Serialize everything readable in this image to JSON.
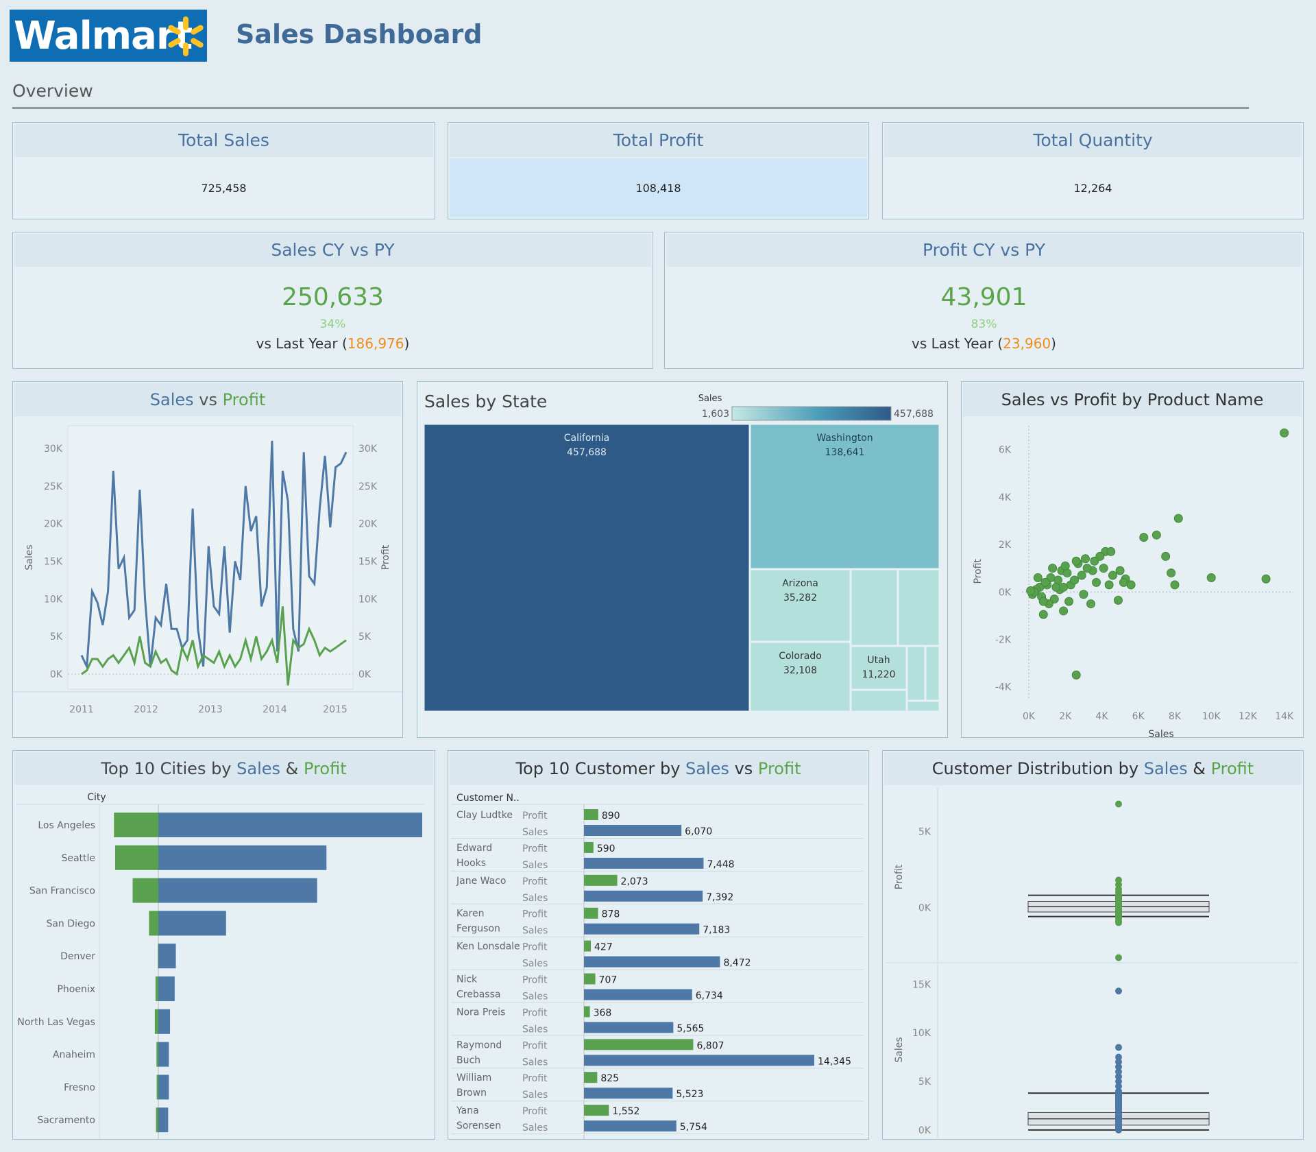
{
  "header": {
    "logo_text": "Walmart",
    "title": "Sales Dashboard",
    "section": "Overview"
  },
  "kpis": [
    {
      "title": "Total Sales",
      "value": "725,458"
    },
    {
      "title": "Total Profit",
      "value": "108,418"
    },
    {
      "title": "Total Quantity",
      "value": "12,264"
    }
  ],
  "cy_vs_py": [
    {
      "title": "Sales CY vs PY",
      "value": "250,633",
      "pct": "34%",
      "vs_prefix": "vs Last Year (",
      "last_year": "186,976",
      "vs_suffix": ")"
    },
    {
      "title": "Profit CY vs PY",
      "value": "43,901",
      "pct": "83%",
      "vs_prefix": "vs Last Year (",
      "last_year": "23,960",
      "vs_suffix": ")"
    }
  ],
  "titles": {
    "line_a": "Sales",
    "line_mid": " vs ",
    "line_b": "Profit",
    "treemap": "Sales by State",
    "scatter": "Sales vs Profit by Product Name",
    "cities_pre": "Top 10 Cities by ",
    "cities_a": "Sales",
    "cities_amp": " & ",
    "cities_b": "Profit",
    "cust_pre": "Top 10 Customer by ",
    "cust_a": "Sales",
    "cust_vs": " vs ",
    "cust_b": "Profit",
    "dist_pre": "Customer Distribution by ",
    "dist_a": "Sales",
    "dist_amp": " & ",
    "dist_b": "Profit"
  },
  "colors": {
    "sales": "#4e79a7",
    "profit": "#59a14f",
    "accent_orange": "#f28e2b",
    "treemap_dark": "#2e5a87",
    "treemap_mid": "#7bbfcb",
    "treemap_light": "#b4e0dc"
  },
  "chart_data": [
    {
      "type": "line",
      "id": "sales_vs_profit",
      "title": "Sales vs Profit",
      "ylabel": "Sales",
      "y2label": "Profit",
      "ylim": [
        -2000,
        33000
      ],
      "y_ticks": [
        "0K",
        "5K",
        "10K",
        "15K",
        "20K",
        "25K",
        "30K"
      ],
      "y_tick_values": [
        0,
        5000,
        10000,
        15000,
        20000,
        25000,
        30000
      ],
      "x_ticks": [
        "2011",
        "2012",
        "2013",
        "2014",
        "2015"
      ],
      "series": [
        {
          "name": "Sales",
          "values": [
            2500,
            1000,
            11000,
            9500,
            6500,
            11000,
            27000,
            14000,
            15500,
            7500,
            8500,
            24500,
            10000,
            1000,
            7500,
            6500,
            12000,
            6000,
            6000,
            3500,
            4500,
            22000,
            6000,
            1000,
            17000,
            9000,
            8000,
            17000,
            5500,
            15000,
            12500,
            25000,
            19000,
            21000,
            9000,
            11500,
            31000,
            3000,
            27000,
            23000,
            6000,
            3000,
            29500,
            13000,
            12000,
            22000,
            29000,
            19500,
            27500,
            28000,
            29500
          ]
        },
        {
          "name": "Profit",
          "values": [
            0,
            500,
            2000,
            2000,
            1000,
            2000,
            2500,
            1500,
            2500,
            3500,
            1500,
            5000,
            1500,
            1000,
            3000,
            1500,
            2000,
            500,
            0,
            3500,
            2000,
            4500,
            1000,
            2500,
            2000,
            1500,
            3000,
            1000,
            2500,
            1000,
            2000,
            4500,
            2000,
            5000,
            2000,
            3000,
            4500,
            1500,
            9000,
            -1500,
            4500,
            3500,
            4000,
            6000,
            4500,
            2500,
            3500,
            3000,
            3500,
            4000,
            4500
          ]
        }
      ]
    },
    {
      "type": "heatmap",
      "id": "sales_by_state",
      "subtype": "treemap",
      "title": "Sales by State",
      "legend_title": "Sales",
      "legend_min": "1,603",
      "legend_max": "457,688",
      "states": [
        {
          "name": "California",
          "value": 457688,
          "label": "457,688"
        },
        {
          "name": "Washington",
          "value": 138641,
          "label": "138,641"
        },
        {
          "name": "Arizona",
          "value": 35282,
          "label": "35,282"
        },
        {
          "name": "Colorado",
          "value": 32108,
          "label": "32,108"
        },
        {
          "name": "Utah",
          "value": 11220,
          "label": "11,220"
        }
      ]
    },
    {
      "type": "scatter",
      "id": "sales_vs_profit_product",
      "title": "Sales vs Profit by Product Name",
      "xlabel": "Sales",
      "ylabel": "Profit",
      "xlim": [
        0,
        14500
      ],
      "ylim": [
        -4500,
        7000
      ],
      "x_ticks": [
        "0K",
        "2K",
        "4K",
        "6K",
        "8K",
        "10K",
        "12K",
        "14K"
      ],
      "x_tick_values": [
        0,
        2000,
        4000,
        6000,
        8000,
        10000,
        12000,
        14000
      ],
      "y_ticks": [
        "-4K",
        "-2K",
        "0K",
        "2K",
        "4K",
        "6K"
      ],
      "y_tick_values": [
        -4000,
        -2000,
        0,
        2000,
        4000,
        6000
      ],
      "points": [
        [
          14000,
          6700
        ],
        [
          8200,
          3100
        ],
        [
          7000,
          2400
        ],
        [
          6300,
          2300
        ],
        [
          7500,
          1500
        ],
        [
          7800,
          800
        ],
        [
          8000,
          300
        ],
        [
          10000,
          600
        ],
        [
          13000,
          550
        ],
        [
          2600,
          -3500
        ],
        [
          800,
          -950
        ],
        [
          1900,
          -800
        ],
        [
          3400,
          -500
        ],
        [
          4900,
          -350
        ],
        [
          5600,
          300
        ],
        [
          5300,
          550
        ],
        [
          5200,
          400
        ],
        [
          4200,
          1700
        ],
        [
          4500,
          1700
        ],
        [
          3900,
          1500
        ],
        [
          3100,
          1400
        ],
        [
          2700,
          1200
        ],
        [
          1600,
          500
        ],
        [
          3500,
          900
        ],
        [
          4100,
          1000
        ],
        [
          2900,
          700
        ],
        [
          2300,
          300
        ],
        [
          1800,
          900
        ],
        [
          1200,
          600
        ],
        [
          1000,
          300
        ],
        [
          600,
          200
        ],
        [
          400,
          100
        ],
        [
          200,
          -100
        ],
        [
          700,
          -200
        ],
        [
          1400,
          -300
        ],
        [
          1700,
          100
        ],
        [
          2500,
          500
        ],
        [
          2100,
          800
        ],
        [
          3700,
          400
        ],
        [
          4600,
          700
        ],
        [
          5000,
          900
        ],
        [
          3000,
          -100
        ],
        [
          2200,
          -400
        ],
        [
          1100,
          -500
        ],
        [
          1500,
          200
        ],
        [
          900,
          400
        ],
        [
          500,
          600
        ],
        [
          300,
          0
        ],
        [
          1300,
          1000
        ],
        [
          2000,
          1100
        ],
        [
          2600,
          1300
        ],
        [
          3200,
          1000
        ],
        [
          4400,
          300
        ],
        [
          3600,
          1300
        ],
        [
          1900,
          200
        ],
        [
          800,
          -400
        ],
        [
          100,
          50
        ]
      ]
    },
    {
      "type": "bar",
      "id": "top10_cities",
      "title": "Top 10 Cities by Sales & Profit",
      "axis_header": "City",
      "categories": [
        "Los Angeles",
        "Seattle",
        "San Francisco",
        "San Diego",
        "Denver",
        "Phoenix",
        "North Las Vegas",
        "Anaheim",
        "Fresno",
        "Sacramento"
      ],
      "series": [
        {
          "name": "Sales",
          "values": [
            113000,
            72000,
            68000,
            29000,
            7500,
            7000,
            5000,
            4500,
            4500,
            4200
          ]
        },
        {
          "name": "Profit",
          "values": [
            19000,
            18500,
            11000,
            4000,
            200,
            1200,
            1500,
            800,
            700,
            1000
          ]
        }
      ]
    },
    {
      "type": "bar",
      "id": "top10_customers",
      "title": "Top 10 Customer by Sales vs Profit",
      "axis_header": "Customer N..",
      "row_labels": [
        "Profit",
        "Sales"
      ],
      "customers": [
        {
          "name": "Clay Ludtke",
          "profit": 890,
          "profit_label": "890",
          "sales": 6070,
          "sales_label": "6,070"
        },
        {
          "name": "Edward Hooks",
          "profit": 590,
          "profit_label": "590",
          "sales": 7448,
          "sales_label": "7,448"
        },
        {
          "name": "Jane Waco",
          "profit": 2073,
          "profit_label": "2,073",
          "sales": 7392,
          "sales_label": "7,392"
        },
        {
          "name": "Karen Ferguson",
          "profit": 878,
          "profit_label": "878",
          "sales": 7183,
          "sales_label": "7,183"
        },
        {
          "name": "Ken Lonsdale",
          "profit": 427,
          "profit_label": "427",
          "sales": 8472,
          "sales_label": "8,472"
        },
        {
          "name": "Nick Crebassa",
          "profit": 707,
          "profit_label": "707",
          "sales": 6734,
          "sales_label": "6,734"
        },
        {
          "name": "Nora Preis",
          "profit": 368,
          "profit_label": "368",
          "sales": 5565,
          "sales_label": "5,565"
        },
        {
          "name": "Raymond Buch",
          "profit": 6807,
          "profit_label": "6,807",
          "sales": 14345,
          "sales_label": "14,345"
        },
        {
          "name": "William Brown",
          "profit": 825,
          "profit_label": "825",
          "sales": 5523,
          "sales_label": "5,523"
        },
        {
          "name": "Yana Sorensen",
          "profit": 1552,
          "profit_label": "1,552",
          "sales": 5754,
          "sales_label": "5,754"
        }
      ]
    },
    {
      "type": "scatter",
      "id": "customer_distribution",
      "subtype": "box-plot",
      "title": "Customer Distribution by Sales & Profit",
      "panels": [
        {
          "name": "Profit",
          "ylim": [
            -3500,
            7500
          ],
          "y_ticks": [
            "0K",
            "5K"
          ],
          "y_tick_values": [
            0,
            5000
          ],
          "outliers": [
            6800,
            -3300,
            1800,
            1500,
            1200,
            1000,
            800,
            -500,
            -700,
            -900,
            -1000
          ],
          "box": [
            -300,
            400
          ],
          "whiskers": [
            -600,
            800
          ]
        },
        {
          "name": "Sales",
          "ylim": [
            -500,
            17000
          ],
          "y_ticks": [
            "0K",
            "5K",
            "10K",
            "15K"
          ],
          "y_tick_values": [
            0,
            5000,
            10000,
            15000
          ],
          "outliers": [
            14300,
            8500,
            7500,
            7000,
            6500,
            6000,
            5500,
            5000,
            4500,
            4000,
            3500,
            3000,
            2500,
            2000
          ],
          "box": [
            500,
            1800
          ],
          "whiskers": [
            0,
            3800
          ]
        }
      ]
    }
  ]
}
